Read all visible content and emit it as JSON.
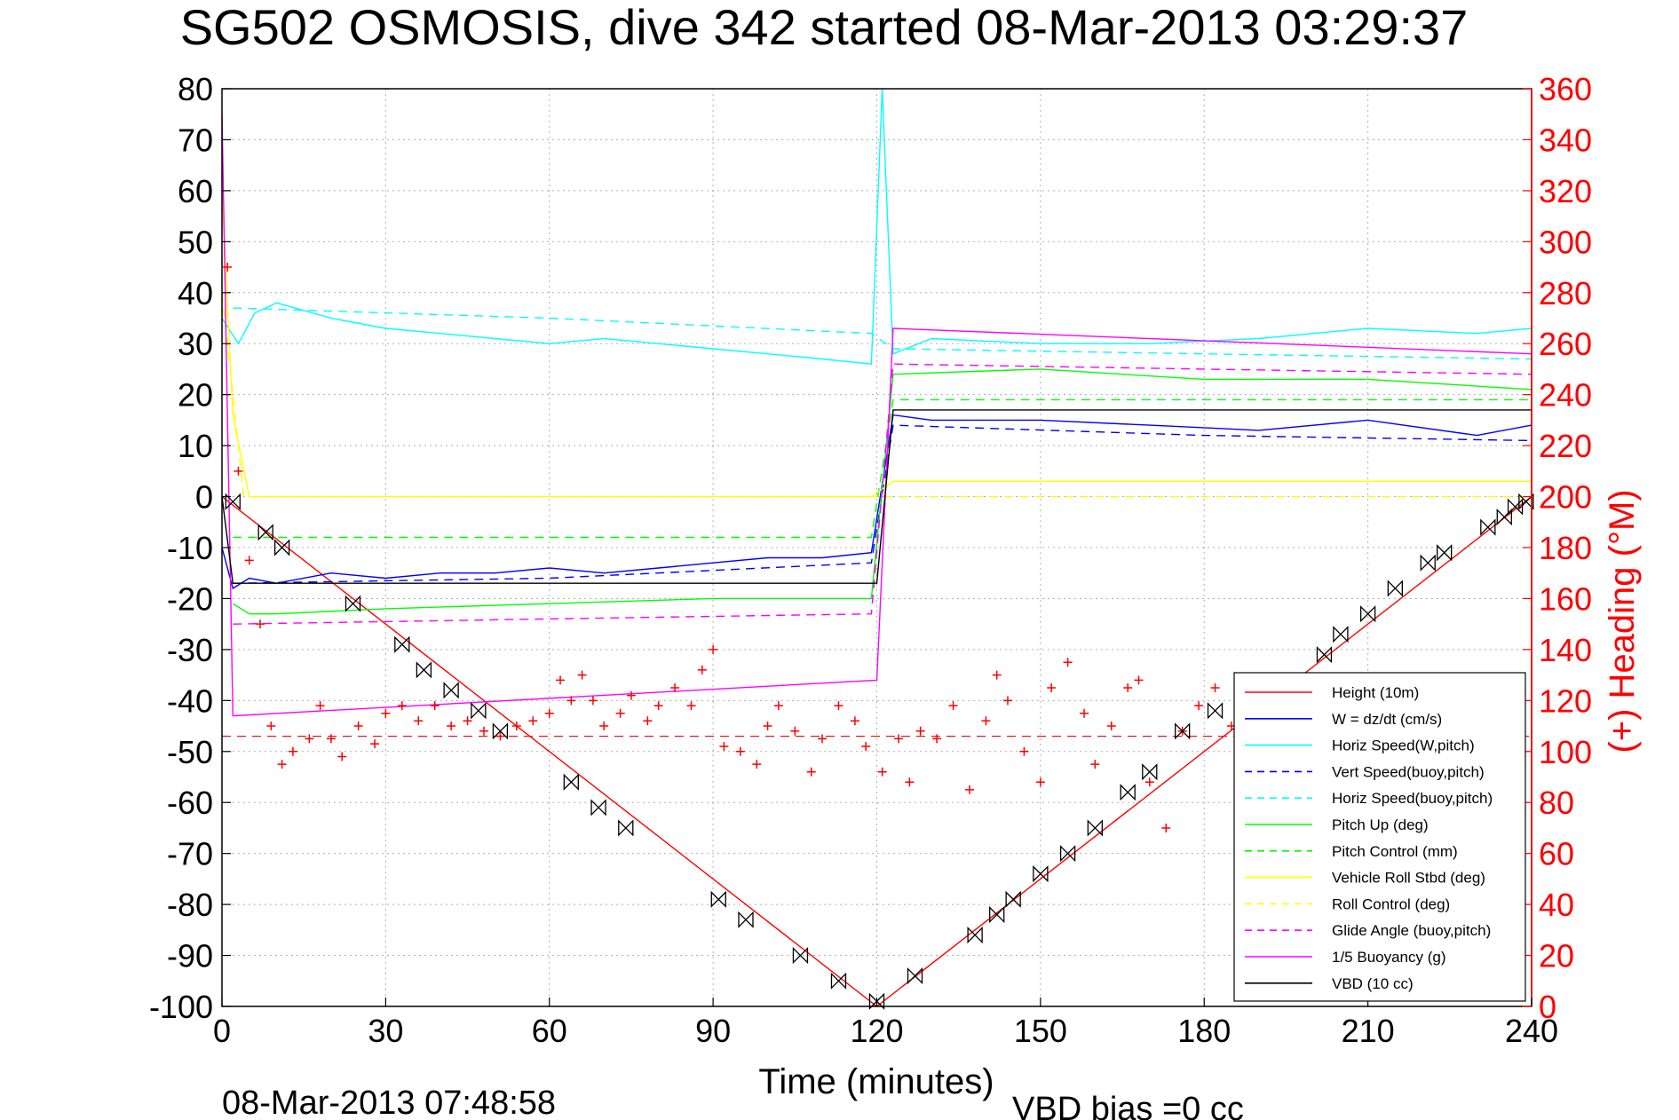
{
  "chart_data": {
    "type": "line",
    "title": "SG502 OSMOSIS, dive 342 started 08-Mar-2013 03:29:37",
    "xlabel": "Time (minutes)",
    "ylabel_right": "(+) Heading (°M)",
    "footer_timestamp": "08-Mar-2013 07:48:58",
    "footer_note": "VBD bias =0 cc",
    "xlim": [
      0,
      240
    ],
    "ylim_left": [
      -100,
      80
    ],
    "ylim_right": [
      0,
      360
    ],
    "x_ticks": [
      "0",
      "30",
      "60",
      "90",
      "120",
      "150",
      "180",
      "210",
      "240"
    ],
    "y_ticks_left": [
      "80",
      "70",
      "60",
      "50",
      "40",
      "30",
      "20",
      "10",
      "0",
      "-10",
      "-20",
      "-30",
      "-40",
      "-50",
      "-60",
      "-70",
      "-80",
      "-90",
      "-100"
    ],
    "y_ticks_right": [
      "360",
      "340",
      "320",
      "300",
      "280",
      "260",
      "240",
      "220",
      "200",
      "180",
      "160",
      "140",
      "120",
      "100",
      "80",
      "60",
      "40",
      "20",
      "0"
    ],
    "grid": true,
    "legend_position": "bottom-right",
    "colors": {
      "height": "#ff0000",
      "w": "#0000ff",
      "horiz": "#00ffff",
      "pitch": "#00ff00",
      "roll": "#ffff00",
      "glide": "#ff00ff",
      "buoyancy": "#ff00ff",
      "vbd": "#000000",
      "heading": "#ff0000",
      "right_axis": "#ff0000"
    },
    "series": [
      {
        "name": "Height (10m)",
        "style": "solid",
        "color": "#ff0000",
        "x": [
          0,
          120,
          240
        ],
        "y": [
          0,
          -100,
          0
        ]
      },
      {
        "name": "W = dz/dt (cm/s)",
        "style": "solid",
        "color": "#0000ff",
        "x": [
          0,
          2,
          5,
          10,
          20,
          30,
          40,
          50,
          60,
          70,
          80,
          90,
          100,
          110,
          119,
          123,
          130,
          150,
          170,
          190,
          210,
          230,
          240
        ],
        "y": [
          -10,
          -18,
          -16,
          -17,
          -15,
          -16,
          -15,
          -15,
          -14,
          -15,
          -14,
          -13,
          -12,
          -12,
          -11,
          16,
          15,
          15,
          14,
          13,
          15,
          12,
          14
        ]
      },
      {
        "name": "Horiz Speed(W,pitch)",
        "style": "solid",
        "color": "#00ffff",
        "x": [
          0,
          3,
          6,
          10,
          20,
          30,
          40,
          50,
          60,
          70,
          80,
          90,
          100,
          110,
          119,
          121,
          123,
          130,
          150,
          170,
          190,
          210,
          230,
          240
        ],
        "y": [
          35,
          30,
          36,
          38,
          35,
          33,
          32,
          31,
          30,
          31,
          30,
          29,
          28,
          27,
          26,
          80,
          28,
          31,
          30,
          30,
          31,
          33,
          32,
          33
        ]
      },
      {
        "name": "Vert Speed(buoy,pitch)",
        "style": "dashed",
        "color": "#0000ff",
        "x": [
          2,
          60,
          119,
          123,
          180,
          240
        ],
        "y": [
          -17,
          -16,
          -13,
          14,
          12,
          11
        ]
      },
      {
        "name": "Horiz Speed(buoy,pitch)",
        "style": "dashed",
        "color": "#00ffff",
        "x": [
          2,
          60,
          119,
          123,
          180,
          240
        ],
        "y": [
          37,
          35,
          32,
          29,
          28,
          27
        ]
      },
      {
        "name": "Pitch Up (deg)",
        "style": "solid",
        "color": "#00ff00",
        "x": [
          2,
          5,
          10,
          30,
          60,
          90,
          119,
          123,
          150,
          180,
          210,
          240
        ],
        "y": [
          -21,
          -23,
          -23,
          -22,
          -21,
          -20,
          -20,
          24,
          25,
          23,
          23,
          21
        ]
      },
      {
        "name": "Pitch Control (mm)",
        "style": "dashed",
        "color": "#00ff00",
        "x": [
          2,
          119,
          123,
          240
        ],
        "y": [
          -8,
          -8,
          19,
          19
        ]
      },
      {
        "name": "Vehicle Roll Stbd (deg)",
        "style": "solid",
        "color": "#ffff00",
        "x": [
          0,
          2,
          5,
          10,
          30,
          60,
          90,
          119,
          123,
          150,
          180,
          210,
          240
        ],
        "y": [
          60,
          16,
          0,
          0,
          0,
          0,
          0,
          0,
          3,
          3,
          3,
          3,
          3
        ]
      },
      {
        "name": "Roll Control (deg)",
        "style": "dashed",
        "color": "#ffff00",
        "x": [
          0,
          4,
          240
        ],
        "y": [
          40,
          0,
          0
        ]
      },
      {
        "name": "Glide Angle (buoy,pitch)",
        "style": "dashed",
        "color": "#ff00ff",
        "x": [
          2,
          60,
          119,
          123,
          180,
          240
        ],
        "y": [
          -25,
          -24,
          -23,
          26,
          25,
          24
        ]
      },
      {
        "name": "1/5 Buoyancy (g)",
        "style": "solid",
        "color": "#ff00ff",
        "x": [
          0,
          2,
          120,
          123,
          240
        ],
        "y": [
          75,
          -43,
          -36,
          33,
          28
        ]
      },
      {
        "name": "VBD (10 cc)",
        "style": "solid",
        "color": "#000000",
        "x": [
          0,
          2,
          120,
          123,
          240
        ],
        "y": [
          0,
          -17,
          -17,
          17,
          17
        ]
      }
    ],
    "heading": {
      "axis": "right",
      "color": "#ff0000",
      "marker": "+",
      "mean": 106,
      "x": [
        1,
        3,
        5,
        7,
        9,
        11,
        13,
        16,
        18,
        20,
        22,
        25,
        28,
        30,
        33,
        36,
        39,
        42,
        45,
        48,
        51,
        54,
        57,
        60,
        62,
        64,
        66,
        68,
        70,
        73,
        75,
        78,
        80,
        83,
        86,
        88,
        90,
        92,
        95,
        98,
        100,
        102,
        105,
        108,
        110,
        113,
        116,
        118,
        121,
        124,
        126,
        128,
        131,
        134,
        137,
        140,
        142,
        144,
        147,
        150,
        152,
        155,
        158,
        160,
        163,
        166,
        168,
        170,
        173,
        176,
        179,
        182,
        185
      ],
      "y": [
        290,
        210,
        175,
        150,
        110,
        95,
        100,
        105,
        118,
        105,
        98,
        110,
        103,
        115,
        118,
        112,
        118,
        110,
        112,
        108,
        106,
        110,
        112,
        115,
        128,
        120,
        130,
        120,
        110,
        115,
        122,
        112,
        118,
        125,
        118,
        132,
        140,
        102,
        100,
        95,
        110,
        118,
        108,
        92,
        105,
        118,
        112,
        102,
        92,
        105,
        88,
        108,
        105,
        118,
        85,
        112,
        130,
        120,
        100,
        88,
        125,
        135,
        115,
        95,
        110,
        125,
        128,
        88,
        70,
        108,
        118,
        125,
        110
      ]
    },
    "markers": {
      "name": "Height samples",
      "color": "#000000",
      "x": [
        2,
        8,
        11,
        24,
        33,
        37,
        42,
        47,
        51,
        64,
        69,
        74,
        91,
        96,
        106,
        113,
        120,
        127,
        138,
        142,
        145,
        150,
        155,
        160,
        166,
        170,
        176,
        182,
        202,
        205,
        210,
        215,
        221,
        224,
        232,
        235,
        237,
        239
      ],
      "y": [
        -1,
        -7,
        -10,
        -21,
        -29,
        -34,
        -38,
        -42,
        -46,
        -56,
        -61,
        -65,
        -79,
        -83,
        -90,
        -95,
        -99,
        -94,
        -86,
        -82,
        -79,
        -74,
        -70,
        -65,
        -58,
        -54,
        -46,
        -42,
        -31,
        -27,
        -23,
        -18,
        -13,
        -11,
        -6,
        -4,
        -2,
        -1
      ]
    },
    "legend": [
      {
        "label": "Height (10m)",
        "color": "#ff0000",
        "style": "solid"
      },
      {
        "label": "W = dz/dt (cm/s)",
        "color": "#0000ff",
        "style": "solid"
      },
      {
        "label": "Horiz Speed(W,pitch)",
        "color": "#00ffff",
        "style": "solid"
      },
      {
        "label": "Vert Speed(buoy,pitch)",
        "color": "#0000ff",
        "style": "dashed"
      },
      {
        "label": "Horiz Speed(buoy,pitch)",
        "color": "#00ffff",
        "style": "dashed"
      },
      {
        "label": "Pitch Up (deg)",
        "color": "#00ff00",
        "style": "solid"
      },
      {
        "label": "Pitch Control (mm)",
        "color": "#00ff00",
        "style": "dashed"
      },
      {
        "label": "Vehicle Roll Stbd (deg)",
        "color": "#ffff00",
        "style": "solid"
      },
      {
        "label": "Roll Control (deg)",
        "color": "#ffff00",
        "style": "dashed"
      },
      {
        "label": "Glide Angle (buoy,pitch)",
        "color": "#ff00ff",
        "style": "dashed"
      },
      {
        "label": "1/5 Buoyancy (g)",
        "color": "#ff00ff",
        "style": "solid"
      },
      {
        "label": "VBD (10 cc)",
        "color": "#000000",
        "style": "solid"
      }
    ]
  }
}
